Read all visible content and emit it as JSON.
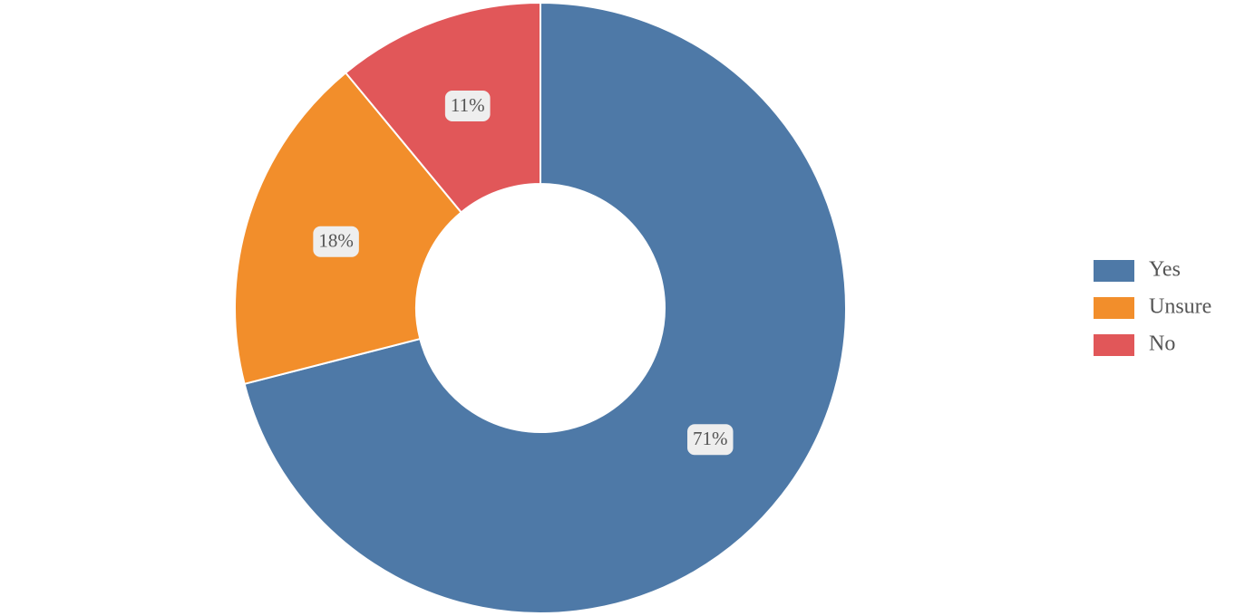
{
  "chart_data": {
    "type": "donut",
    "categories": [
      "Yes",
      "Unsure",
      "No"
    ],
    "values": [
      71,
      18,
      11
    ],
    "value_labels": [
      "71%",
      "18%",
      "11%"
    ],
    "colors": [
      "#4e79a7",
      "#f28e2b",
      "#e15759"
    ],
    "legend": "right"
  }
}
